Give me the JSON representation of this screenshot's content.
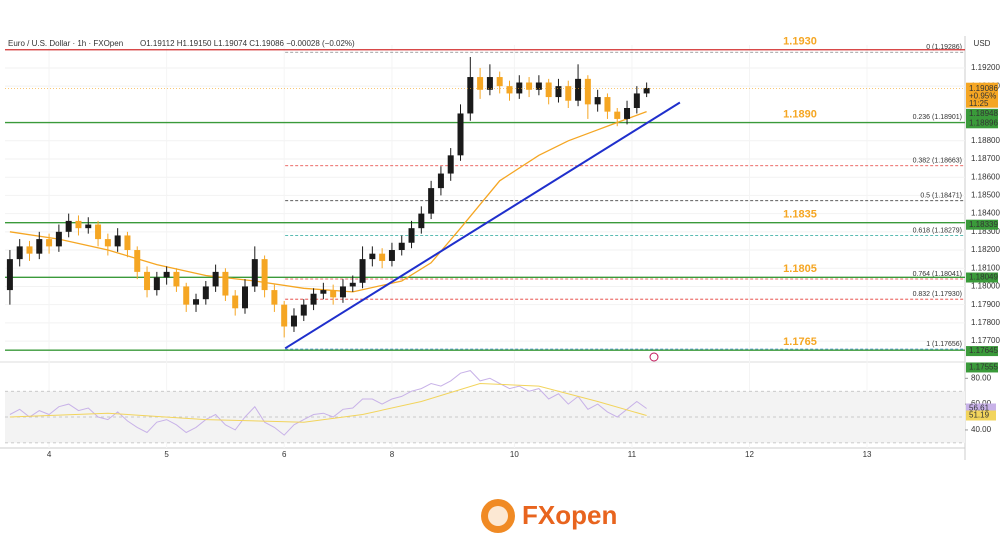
{
  "chart_data": {
    "type": "candlestick",
    "title": "Euro / U.S. Dollar · 1h · FXOpen",
    "ohlc_header": "O1.19112  H1.19150  L1.19074  C1.19086  −0.00028 (−0.02%)",
    "currency": "USD",
    "brand": "FXopen",
    "up_color": "#1a1a1a",
    "down_color": "#f5a623",
    "grid": true,
    "xlim": [
      -0.5,
      97.5
    ],
    "xticks": [
      {
        "value": 4,
        "label": "4"
      },
      {
        "value": 16,
        "label": "5"
      },
      {
        "value": 28,
        "label": "6"
      },
      {
        "value": 39,
        "label": "8"
      },
      {
        "value": 51.5,
        "label": "10"
      },
      {
        "value": 63.5,
        "label": "11"
      },
      {
        "value": 75.5,
        "label": "12"
      },
      {
        "value": 87.5,
        "label": "13"
      }
    ],
    "ylim": [
      1.17596,
      1.19326
    ],
    "yticks": [
      {
        "value": 1.192,
        "label": "1.19200"
      },
      {
        "value": 1.191,
        "label": "1.19100"
      },
      {
        "value": 1.188,
        "label": "1.18800"
      },
      {
        "value": 1.187,
        "label": "1.18700"
      },
      {
        "value": 1.186,
        "label": "1.18600"
      },
      {
        "value": 1.185,
        "label": "1.18500"
      },
      {
        "value": 1.184,
        "label": "1.18400"
      },
      {
        "value": 1.183,
        "label": "1.18300"
      },
      {
        "value": 1.182,
        "label": "1.18200"
      },
      {
        "value": 1.181,
        "label": "1.18100"
      },
      {
        "value": 1.18,
        "label": "1.18000"
      },
      {
        "value": 1.179,
        "label": "1.17900"
      },
      {
        "value": 1.178,
        "label": "1.17800"
      },
      {
        "value": 1.177,
        "label": "1.17700"
      }
    ],
    "open": [
      1.1798,
      1.1815,
      1.1822,
      1.1818,
      1.1826,
      1.1822,
      1.183,
      1.1836,
      1.1832,
      1.1834,
      1.1826,
      1.1822,
      1.1828,
      1.182,
      1.1808,
      1.1798,
      1.1805,
      1.1808,
      1.18,
      1.179,
      1.1793,
      1.18,
      1.1808,
      1.1795,
      1.1788,
      1.18,
      1.1815,
      1.1798,
      1.179,
      1.1778,
      1.1784,
      1.179,
      1.1796,
      1.1798,
      1.1794,
      1.18,
      1.1802,
      1.1815,
      1.1818,
      1.1814,
      1.182,
      1.1824,
      1.1832,
      1.184,
      1.1854,
      1.1862,
      1.1872,
      1.1895,
      1.1915,
      1.1908,
      1.1915,
      1.191,
      1.1906,
      1.1912,
      1.1908,
      1.1912,
      1.1904,
      1.191,
      1.1902,
      1.1914,
      1.19,
      1.1904,
      1.1896,
      1.1892,
      1.1898,
      1.1906
    ],
    "high": [
      1.182,
      1.1826,
      1.1825,
      1.183,
      1.1829,
      1.1834,
      1.184,
      1.1839,
      1.1838,
      1.1836,
      1.1829,
      1.1832,
      1.183,
      1.1822,
      1.1811,
      1.1808,
      1.1811,
      1.181,
      1.1802,
      1.1796,
      1.1803,
      1.1812,
      1.181,
      1.1798,
      1.1804,
      1.1822,
      1.1817,
      1.1801,
      1.1792,
      1.1788,
      1.1793,
      1.1799,
      1.1802,
      1.1801,
      1.1804,
      1.1806,
      1.1822,
      1.1822,
      1.1821,
      1.1824,
      1.1828,
      1.1836,
      1.1844,
      1.1858,
      1.1866,
      1.1876,
      1.19,
      1.1926,
      1.192,
      1.1922,
      1.1918,
      1.1913,
      1.1916,
      1.1915,
      1.1916,
      1.1914,
      1.1914,
      1.1913,
      1.1922,
      1.1916,
      1.1908,
      1.1906,
      1.1898,
      1.1902,
      1.191,
      1.1912
    ],
    "low": [
      1.179,
      1.1811,
      1.1814,
      1.1815,
      1.1818,
      1.1819,
      1.1827,
      1.1828,
      1.1829,
      1.1822,
      1.1817,
      1.1819,
      1.1816,
      1.1804,
      1.1794,
      1.1795,
      1.1801,
      1.1797,
      1.1786,
      1.1786,
      1.179,
      1.1797,
      1.1792,
      1.1784,
      1.1785,
      1.1797,
      1.1794,
      1.1786,
      1.1772,
      1.1775,
      1.1781,
      1.1787,
      1.1793,
      1.179,
      1.1791,
      1.1797,
      1.1799,
      1.1811,
      1.181,
      1.1811,
      1.1817,
      1.1821,
      1.1829,
      1.1837,
      1.185,
      1.1858,
      1.1869,
      1.1891,
      1.1903,
      1.1905,
      1.1906,
      1.1902,
      1.1903,
      1.1904,
      1.1905,
      1.19,
      1.1901,
      1.1898,
      1.1899,
      1.1892,
      1.1896,
      1.1892,
      1.1888,
      1.1889,
      1.1895,
      1.1904
    ],
    "close": [
      1.1815,
      1.1822,
      1.1818,
      1.1826,
      1.1822,
      1.183,
      1.1836,
      1.1832,
      1.1834,
      1.1826,
      1.1822,
      1.1828,
      1.182,
      1.1808,
      1.1798,
      1.1805,
      1.1808,
      1.18,
      1.179,
      1.1793,
      1.18,
      1.1808,
      1.1795,
      1.1788,
      1.18,
      1.1815,
      1.1798,
      1.179,
      1.1778,
      1.1784,
      1.179,
      1.1796,
      1.1798,
      1.1794,
      1.18,
      1.1802,
      1.1815,
      1.1818,
      1.1814,
      1.182,
      1.1824,
      1.1832,
      1.184,
      1.1854,
      1.1862,
      1.1872,
      1.1895,
      1.1915,
      1.1908,
      1.1915,
      1.191,
      1.1906,
      1.1912,
      1.1908,
      1.1912,
      1.1904,
      1.191,
      1.1902,
      1.1914,
      1.19,
      1.1904,
      1.1896,
      1.1892,
      1.1898,
      1.1906,
      1.1909
    ],
    "ma": {
      "color": "#f5a623",
      "x": [
        0,
        5,
        10,
        15,
        20,
        25,
        30,
        35,
        40,
        43,
        46,
        50,
        54,
        57,
        60,
        63,
        65
      ],
      "values": [
        1.183,
        1.1826,
        1.182,
        1.1812,
        1.1806,
        1.1803,
        1.1799,
        1.1797,
        1.1803,
        1.1813,
        1.1832,
        1.1858,
        1.1872,
        1.188,
        1.1886,
        1.1892,
        1.1896
      ]
    },
    "trendline": {
      "color": "#1f2fcc",
      "x": [
        28.1,
        68.4
      ],
      "values": [
        1.1766,
        1.1901
      ]
    },
    "levels": [
      {
        "value": 1.193,
        "label": "1.1930",
        "color": "#d32f2f"
      },
      {
        "value": 1.189,
        "label": "1.1890",
        "color": "#3a9a3a"
      },
      {
        "value": 1.1835,
        "label": "1.1835",
        "color": "#3a9a3a"
      },
      {
        "value": 1.1805,
        "label": "1.1805",
        "color": "#3a9a3a"
      },
      {
        "value": 1.1765,
        "label": "1.1765",
        "color": "#3a9a3a"
      }
    ],
    "fib": [
      {
        "value": 1.19286,
        "label": "0 (1.19286)",
        "color": "#888888"
      },
      {
        "value": 1.18901,
        "label": "0.236 (1.18901)",
        "color": "#e53935"
      },
      {
        "value": 1.18663,
        "label": "0.382 (1.18663)",
        "color": "#e53935"
      },
      {
        "value": 1.18471,
        "label": "0.5 (1.18471)",
        "color": "#444444"
      },
      {
        "value": 1.18279,
        "label": "0.618 (1.18279)",
        "color": "#26a69a"
      },
      {
        "value": 1.18041,
        "label": "0.764 (1.18041)",
        "color": "#e53935"
      },
      {
        "value": 1.1793,
        "label": "0.832 (1.17930)",
        "color": "#e53935"
      },
      {
        "value": 1.17656,
        "label": "1 (1.17656)",
        "color": "#5a9bd5"
      }
    ],
    "tags": [
      {
        "value": 1.18948,
        "color": "#3a9a3a"
      },
      {
        "value": 1.18896,
        "color": "#3a9a3a"
      },
      {
        "value": 1.18339,
        "color": "#3a9a3a"
      },
      {
        "value": 1.18049,
        "color": "#3a9a3a"
      },
      {
        "value": 1.17645,
        "color": "#3a9a3a"
      },
      {
        "value": 1.17555,
        "color": "#3a9a3a"
      }
    ],
    "price_tag": {
      "value": 1.19086,
      "change": "+0.95%",
      "time": "11:25",
      "color": "#f5a623"
    },
    "rsi": {
      "ylim": [
        26,
        88
      ],
      "yticks": [
        {
          "value": 80,
          "label": "80.00"
        },
        {
          "value": 60,
          "label": "60.00"
        },
        {
          "value": 40,
          "label": "40.00"
        }
      ],
      "bands": [
        30,
        50,
        70
      ],
      "color": "#c8b2e8",
      "values": [
        52,
        56,
        50,
        55,
        52,
        58,
        60,
        55,
        57,
        50,
        48,
        54,
        47,
        42,
        38,
        46,
        48,
        44,
        38,
        42,
        48,
        52,
        44,
        40,
        50,
        58,
        46,
        42,
        36,
        44,
        48,
        52,
        53,
        50,
        56,
        57,
        64,
        64,
        60,
        64,
        66,
        70,
        72,
        76,
        74,
        78,
        84,
        86,
        78,
        80,
        76,
        72,
        74,
        70,
        72,
        64,
        68,
        60,
        66,
        56,
        60,
        54,
        50,
        56,
        62,
        56.61
      ],
      "ma_color": "#f2d45c",
      "ma_x": [
        0,
        10,
        20,
        30,
        36,
        42,
        48,
        54,
        60,
        65
      ],
      "ma_values": [
        50,
        53,
        48,
        46,
        52,
        62,
        76,
        74,
        62,
        51.19
      ]
    }
  }
}
